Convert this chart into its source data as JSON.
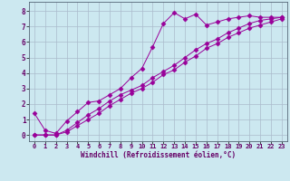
{
  "xlabel": "Windchill (Refroidissement éolien,°C)",
  "bg_color": "#cce8f0",
  "line_color": "#990099",
  "grid_color": "#aabbcc",
  "xlim": [
    -0.5,
    23.5
  ],
  "ylim": [
    -0.4,
    8.6
  ],
  "xticks": [
    0,
    1,
    2,
    3,
    4,
    5,
    6,
    7,
    8,
    9,
    10,
    11,
    12,
    13,
    14,
    15,
    16,
    17,
    18,
    19,
    20,
    21,
    22,
    23
  ],
  "yticks": [
    0,
    1,
    2,
    3,
    4,
    5,
    6,
    7,
    8
  ],
  "line1_x": [
    0,
    1,
    2,
    3,
    4,
    5,
    6,
    7,
    8,
    9,
    10,
    11,
    12,
    13,
    14,
    15,
    16,
    17,
    18,
    19,
    20,
    21,
    22,
    23
  ],
  "line1_y": [
    1.4,
    0.3,
    0.1,
    0.9,
    1.5,
    2.1,
    2.2,
    2.6,
    3.0,
    3.7,
    4.3,
    5.7,
    7.2,
    7.9,
    7.5,
    7.8,
    7.1,
    7.3,
    7.5,
    7.6,
    7.7,
    7.6,
    7.6,
    7.6
  ],
  "line2_x": [
    0,
    1,
    2,
    3,
    4,
    5,
    6,
    7,
    8,
    9,
    10,
    11,
    12,
    13,
    14,
    15,
    16,
    17,
    18,
    19,
    20,
    21,
    22,
    23
  ],
  "line2_y": [
    0.0,
    0.0,
    0.0,
    0.3,
    0.8,
    1.3,
    1.7,
    2.2,
    2.6,
    2.9,
    3.2,
    3.7,
    4.1,
    4.5,
    5.0,
    5.5,
    5.9,
    6.2,
    6.6,
    6.9,
    7.2,
    7.4,
    7.5,
    7.6
  ],
  "line3_x": [
    0,
    1,
    2,
    3,
    4,
    5,
    6,
    7,
    8,
    9,
    10,
    11,
    12,
    13,
    14,
    15,
    16,
    17,
    18,
    19,
    20,
    21,
    22,
    23
  ],
  "line3_y": [
    0.0,
    0.0,
    0.0,
    0.2,
    0.6,
    1.0,
    1.4,
    1.9,
    2.3,
    2.7,
    3.0,
    3.4,
    3.9,
    4.2,
    4.7,
    5.1,
    5.6,
    5.9,
    6.3,
    6.6,
    6.9,
    7.1,
    7.3,
    7.5
  ],
  "tick_fontsize": 5.0,
  "xlabel_fontsize": 5.5,
  "marker_size": 2.5,
  "linewidth": 0.7
}
